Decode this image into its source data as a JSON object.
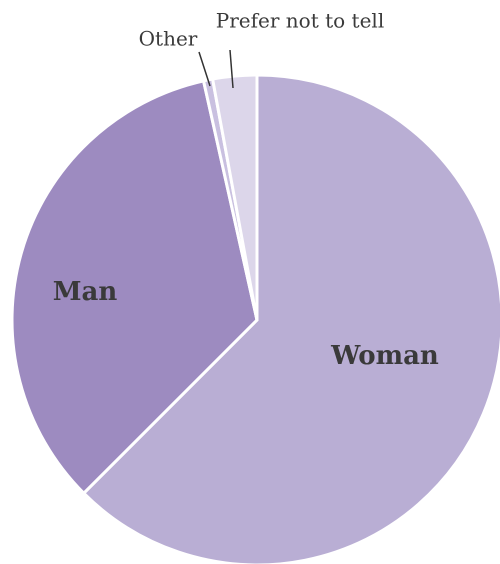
{
  "chart_data": {
    "type": "pie",
    "categories": [
      "Woman",
      "Man",
      "Other",
      "Prefer not to tell"
    ],
    "values": [
      62.5,
      34,
      0.6,
      2.9
    ],
    "colors": [
      "#b9aed4",
      "#9d8bc0",
      "#c9c0e0",
      "#dcd6ea"
    ]
  }
}
